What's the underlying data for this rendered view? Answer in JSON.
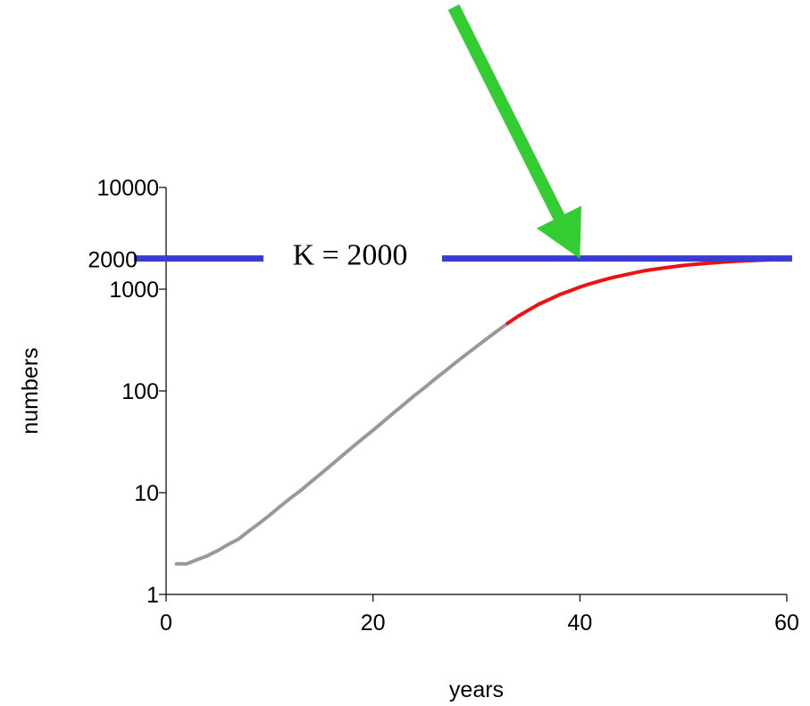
{
  "chart_data": {
    "type": "line",
    "xlabel": "years",
    "ylabel": "numbers",
    "xlim": [
      0,
      60
    ],
    "ylim": [
      1,
      10000
    ],
    "y_scale": "log",
    "grid": false,
    "x_ticks": [
      "0",
      "20",
      "40",
      "60"
    ],
    "y_ticks": [
      "1",
      "10",
      "100",
      "1000",
      "10000"
    ],
    "extra_y_tick": {
      "value": 2000,
      "label": "2000"
    },
    "series": [
      {
        "color": "#999999",
        "x": [
          1,
          2,
          3,
          4,
          5,
          6,
          7,
          8,
          9,
          10,
          11,
          12,
          13,
          14,
          15,
          16,
          17,
          18,
          19,
          20,
          21,
          22,
          23,
          24,
          25,
          26,
          27,
          28,
          29,
          30,
          31,
          32,
          33
        ],
        "y": [
          2,
          2,
          2.2,
          2.4,
          2.7,
          3.1,
          3.5,
          4.2,
          5.0,
          6.0,
          7.3,
          8.8,
          10.5,
          12.8,
          15.5,
          18.8,
          23,
          28,
          34,
          41,
          50,
          61,
          74,
          90,
          108,
          131,
          158,
          190,
          228,
          273,
          326,
          388,
          460
        ]
      },
      {
        "color": "#ee1111",
        "x": [
          33,
          34,
          35,
          36,
          37,
          38,
          39,
          40,
          41,
          42,
          43,
          44,
          45,
          46,
          47,
          48,
          49,
          50,
          51,
          52,
          53,
          54,
          55,
          56,
          57,
          58,
          59,
          60
        ],
        "y": [
          460,
          540,
          620,
          710,
          790,
          880,
          960,
          1050,
          1130,
          1210,
          1290,
          1360,
          1430,
          1500,
          1560,
          1610,
          1660,
          1710,
          1750,
          1790,
          1820,
          1850,
          1880,
          1900,
          1920,
          1940,
          1955,
          1970
        ]
      }
    ],
    "reference_line": {
      "value": 2000,
      "label": "K = 2000",
      "color": "#3a3ad4"
    },
    "arrow": {
      "color": "#33cc33",
      "points_to_x": 40,
      "points_to_y": 2000
    }
  }
}
